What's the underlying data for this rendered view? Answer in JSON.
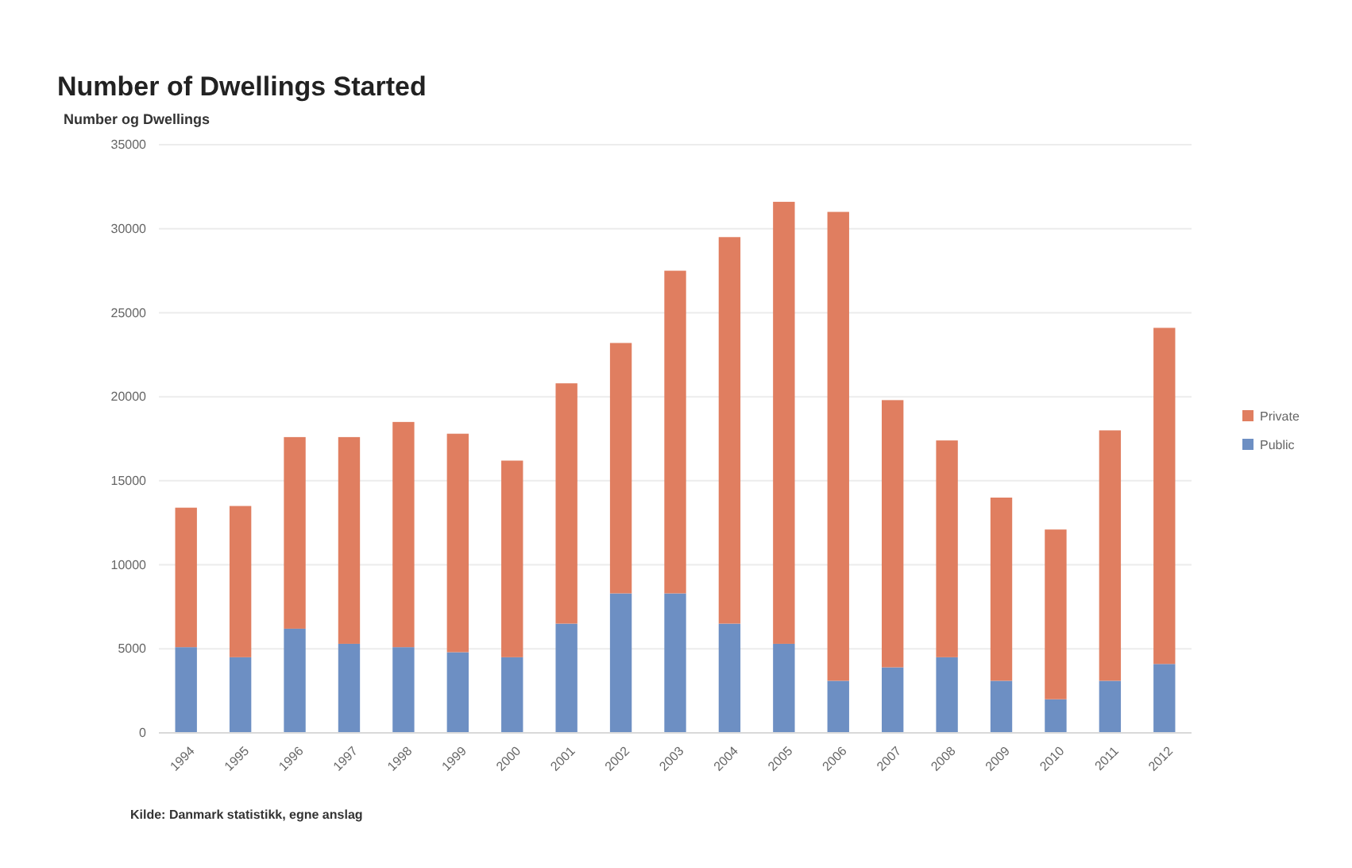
{
  "chart_data": {
    "type": "bar",
    "title": "Number of Dwellings Started",
    "ylabel": "Number og Dwellings",
    "annotations": [
      "Kilde: Danmark statistikk, egne anslag"
    ],
    "categories": [
      "1994",
      "1995",
      "1996",
      "1997",
      "1998",
      "1999",
      "2000",
      "2001",
      "2002",
      "2003",
      "2004",
      "2005",
      "2006",
      "2007",
      "2008",
      "2009",
      "2010",
      "2011",
      "2012"
    ],
    "stacked": true,
    "series": [
      {
        "name": "Public",
        "color": "#6d8fc3",
        "values": [
          5100,
          4500,
          6200,
          5300,
          5100,
          4800,
          4500,
          6500,
          8300,
          8300,
          6500,
          5300,
          3100,
          3900,
          4500,
          3100,
          2000,
          3100,
          4100
        ]
      },
      {
        "name": "Private",
        "color": "#e07e60",
        "values": [
          8300,
          9000,
          11400,
          12300,
          13400,
          13000,
          11700,
          14300,
          14900,
          19200,
          23000,
          26300,
          27900,
          15900,
          12900,
          10900,
          10100,
          14900,
          20000
        ]
      }
    ],
    "ylim": [
      0,
      35000
    ],
    "yticks": [
      0,
      5000,
      10000,
      15000,
      20000,
      25000,
      30000,
      35000
    ],
    "grid": "y",
    "legend": "right"
  }
}
